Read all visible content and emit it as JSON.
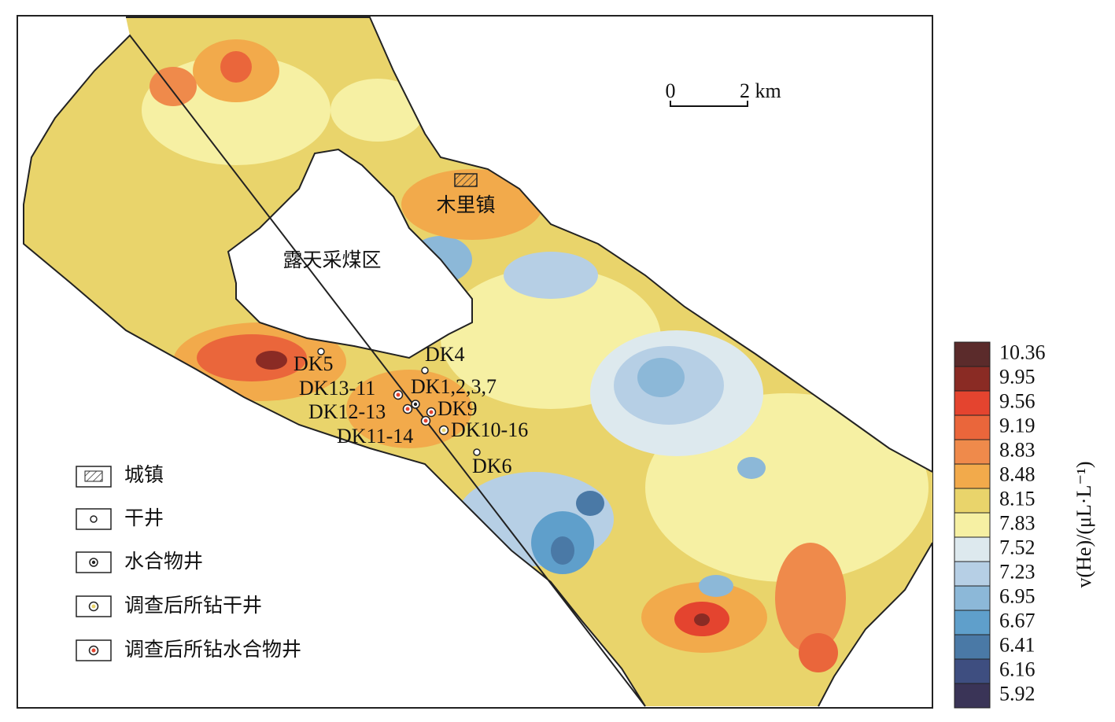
{
  "map": {
    "places": [
      "木里镇",
      "露天采煤区"
    ],
    "scale_bar": [
      "0",
      "2 km"
    ],
    "wells": [
      "DK4",
      "DK5",
      "DK13-11",
      "DK1,2,3,7",
      "DK12-13",
      "DK9",
      "DK11-14",
      "DK10-16",
      "DK6"
    ]
  },
  "legend": [
    "城镇",
    "干井",
    "水合物井",
    "调查后所钻干井",
    "调查后所钻水合物井"
  ],
  "colorbar": {
    "title": "v(He)/(μL·L⁻¹)",
    "ticks": [
      10.36,
      9.95,
      9.56,
      9.19,
      8.83,
      8.48,
      8.15,
      7.83,
      7.52,
      7.23,
      6.95,
      6.67,
      6.41,
      6.16,
      5.92
    ],
    "colors": [
      "#5b2b2b",
      "#8a2b24",
      "#e4442f",
      "#ea663b",
      "#ef8a4b",
      "#f2aa4b",
      "#e9d46b",
      "#f6f0a3",
      "#dde9ee",
      "#b6cfe5",
      "#8cb8d8",
      "#5f9fcb",
      "#4a79a6",
      "#3e4e80",
      "#3a3457"
    ]
  }
}
